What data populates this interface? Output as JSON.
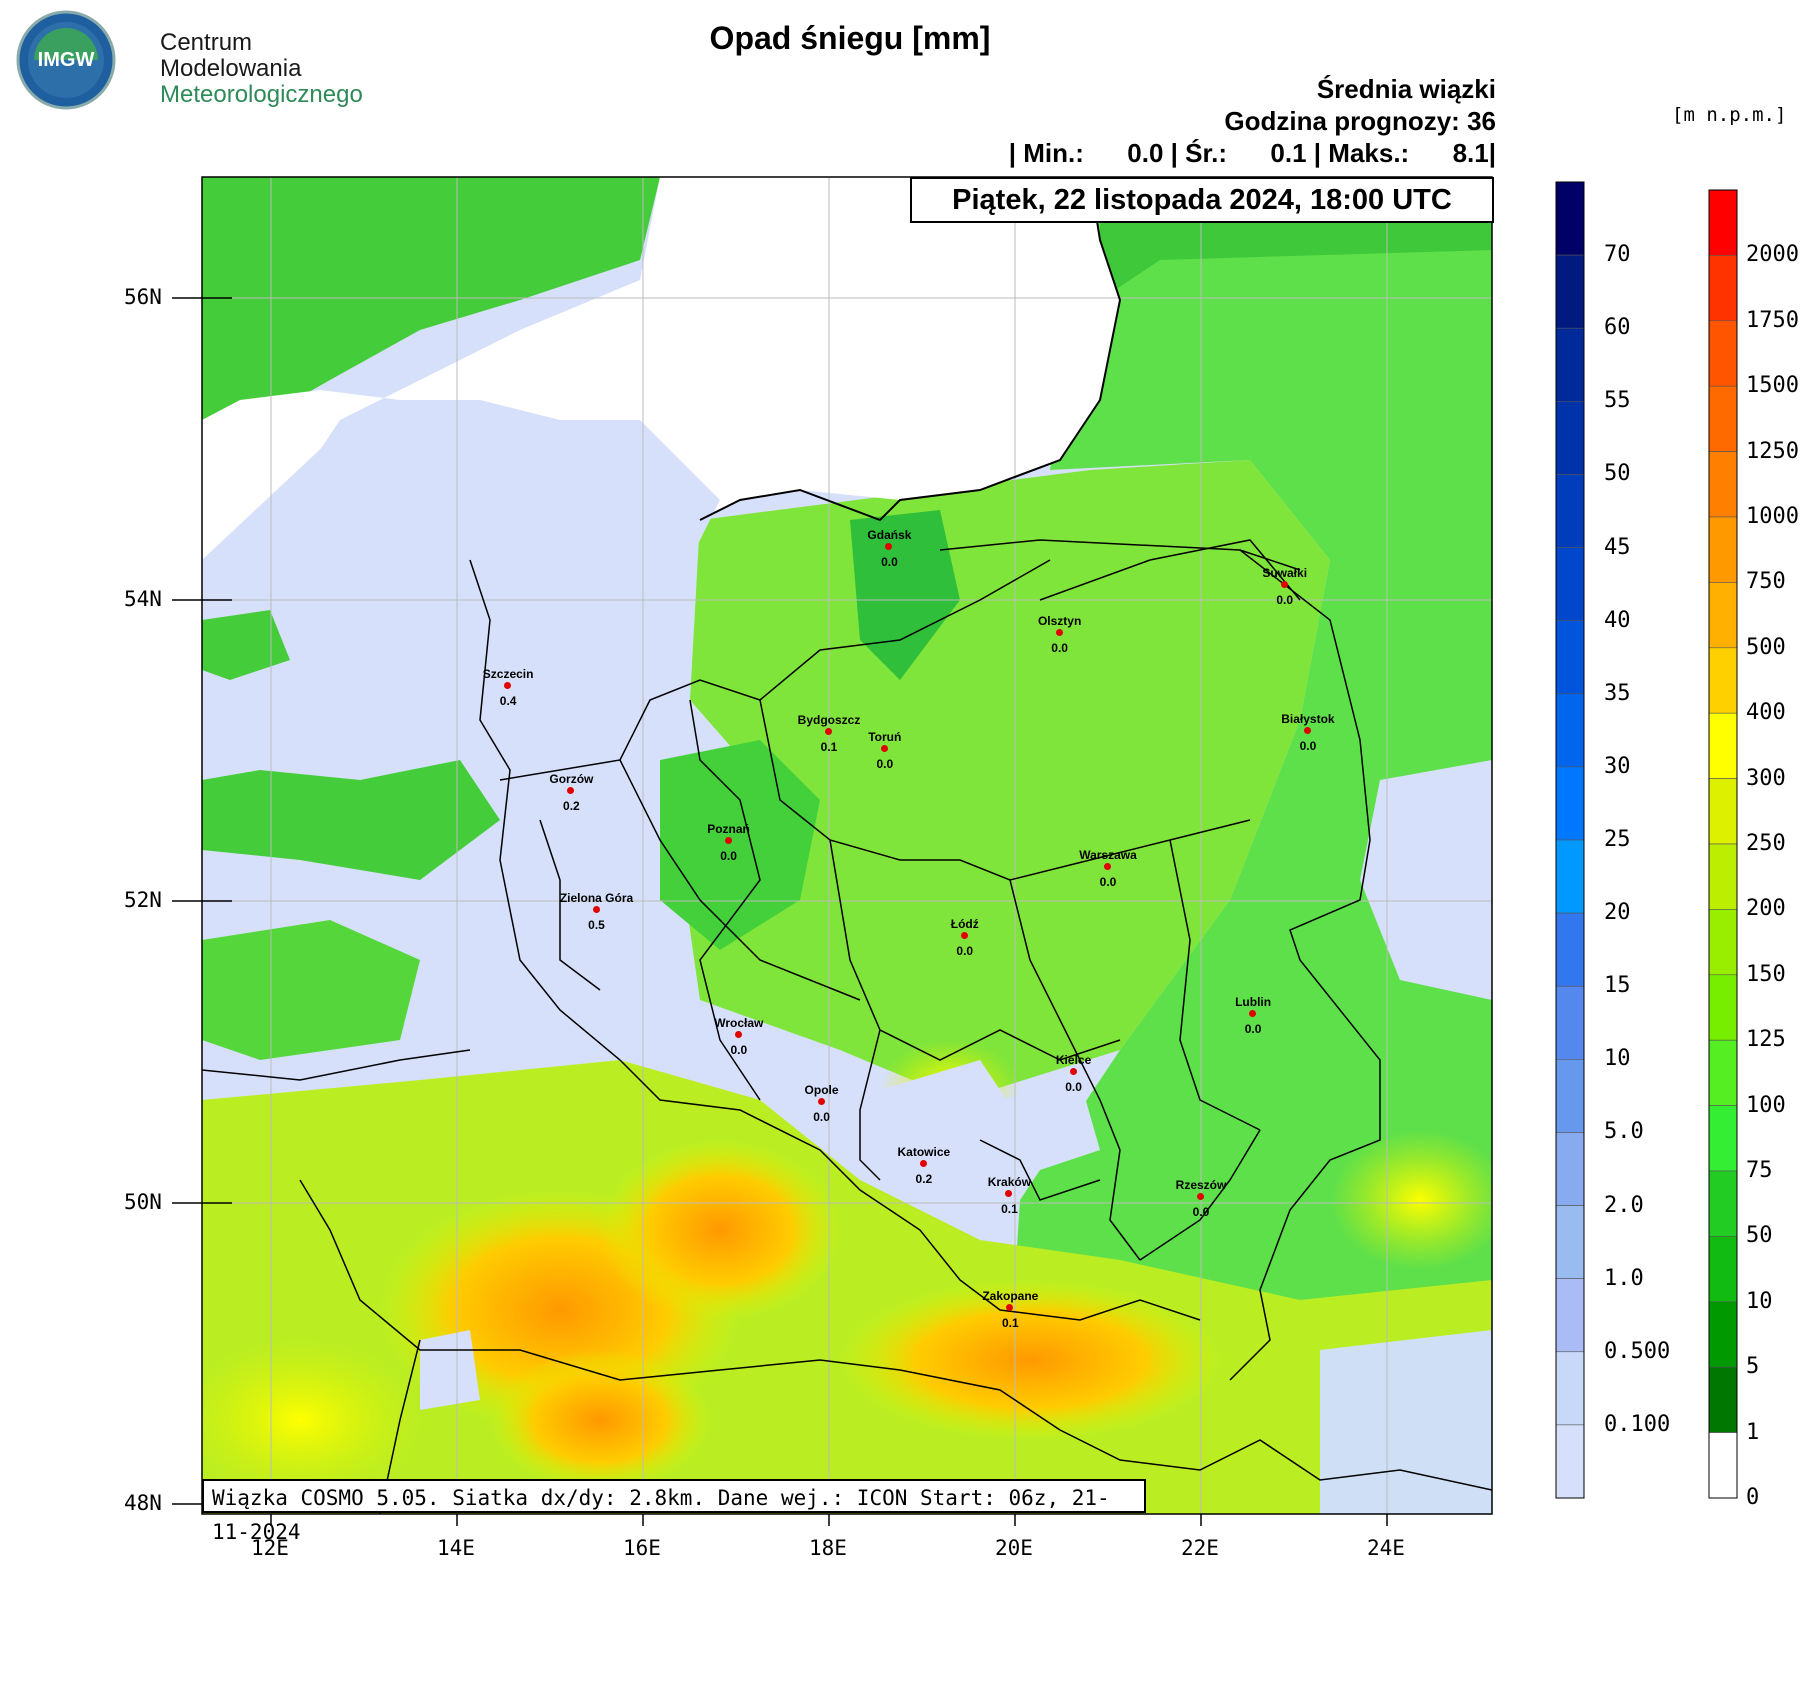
{
  "logo": {
    "badge": "IMGW",
    "line1": "Centrum",
    "line2": "Modelowania",
    "line3": "Meteorologicznego",
    "colors": {
      "blue": "#1f5f9f",
      "green": "#2e8b57"
    }
  },
  "title": "Opad śniegu [mm]",
  "subtitle": "Średnia wiązki",
  "forecast_hour": "Godzina prognozy: 36",
  "stats": {
    "min_label": "| Min.:",
    "min": "0.0",
    "avg_label": "| Śr.:",
    "avg": "0.1",
    "max_label": "| Maks.:",
    "max": "8.1",
    "end": "|"
  },
  "date": "Piątek, 22 listopada 2024, 18:00 UTC",
  "info": "Wiązka COSMO 5.05. Siatka dx/dy: 2.8km. Dane wej.: ICON Start: 06z, 21-11-2024",
  "units": "[m n.p.m.]",
  "chart_data": {
    "type": "map",
    "x_axis_labels": [
      "12E",
      "14E",
      "16E",
      "18E",
      "20E",
      "22E",
      "24E"
    ],
    "y_axis_labels": [
      "56N",
      "54N",
      "52N",
      "50N",
      "48N"
    ],
    "cities": [
      {
        "name": "Gdańsk",
        "value": "0.0",
        "lon": 18.65,
        "lat": 54.35
      },
      {
        "name": "Suwałki",
        "value": "0.0",
        "lon": 22.9,
        "lat": 54.1
      },
      {
        "name": "Olsztyn",
        "value": "0.0",
        "lon": 20.48,
        "lat": 53.78
      },
      {
        "name": "Szczecin",
        "value": "0.4",
        "lon": 14.55,
        "lat": 53.43
      },
      {
        "name": "Bydgoszcz",
        "value": "0.1",
        "lon": 18.0,
        "lat": 53.12
      },
      {
        "name": "Toruń",
        "value": "0.0",
        "lon": 18.6,
        "lat": 53.01
      },
      {
        "name": "Białystok",
        "value": "0.0",
        "lon": 23.15,
        "lat": 53.13
      },
      {
        "name": "Gorzów",
        "value": "0.2",
        "lon": 15.23,
        "lat": 52.73
      },
      {
        "name": "Poznań",
        "value": "0.0",
        "lon": 16.92,
        "lat": 52.4
      },
      {
        "name": "Warszawa",
        "value": "0.0",
        "lon": 21.0,
        "lat": 52.23
      },
      {
        "name": "Zielona Góra",
        "value": "0.5",
        "lon": 15.5,
        "lat": 51.94
      },
      {
        "name": "Łódź",
        "value": "0.0",
        "lon": 19.46,
        "lat": 51.77
      },
      {
        "name": "Lublin",
        "value": "0.0",
        "lon": 22.56,
        "lat": 51.25
      },
      {
        "name": "Wrocław",
        "value": "0.0",
        "lon": 17.03,
        "lat": 51.11
      },
      {
        "name": "Kielce",
        "value": "0.0",
        "lon": 20.63,
        "lat": 50.87
      },
      {
        "name": "Opole",
        "value": "0.0",
        "lon": 17.92,
        "lat": 50.67
      },
      {
        "name": "Katowice",
        "value": "0.2",
        "lon": 19.02,
        "lat": 50.26
      },
      {
        "name": "Kraków",
        "value": "0.1",
        "lon": 19.94,
        "lat": 50.06
      },
      {
        "name": "Rzeszów",
        "value": "0.0",
        "lon": 22.0,
        "lat": 50.04
      },
      {
        "name": "Zakopane",
        "value": "0.1",
        "lon": 19.95,
        "lat": 49.3
      }
    ],
    "snow_colorbar": {
      "labels": [
        "70",
        "60",
        "55",
        "50",
        "45",
        "40",
        "35",
        "30",
        "25",
        "20",
        "15",
        "10",
        "5.0",
        "2.0",
        "1.0",
        "0.500",
        "0.100"
      ],
      "colors": [
        "#000066",
        "#001a80",
        "#002a99",
        "#0033aa",
        "#003dbb",
        "#0047cc",
        "#0055dd",
        "#0066ee",
        "#0077ff",
        "#0099ff",
        "#3377ee",
        "#5588ee",
        "#6699ee",
        "#88aaee",
        "#99bbf0",
        "#aabbf5",
        "#c8d8f8",
        "#d6e0fa"
      ]
    },
    "terrain_colorbar": {
      "labels": [
        "2000",
        "1750",
        "1500",
        "1250",
        "1000",
        "750",
        "500",
        "400",
        "300",
        "250",
        "200",
        "150",
        "125",
        "100",
        "75",
        "50",
        "10",
        "5",
        "1",
        "0"
      ],
      "colors": [
        "#ff0000",
        "#ff3300",
        "#ff5500",
        "#ff6a00",
        "#ff8000",
        "#ff9900",
        "#ffb000",
        "#ffd000",
        "#ffff00",
        "#ddf000",
        "#bbee00",
        "#99ee00",
        "#77ee00",
        "#55ee22",
        "#33ee33",
        "#22cc22",
        "#11bb11",
        "#009900",
        "#007700",
        "#ffffff"
      ]
    },
    "field_colors": {
      "sea": "#ffffff",
      "snow_light": "#d6e0fa",
      "low": "#33cc33",
      "mid": "#88ee22",
      "high": "#ddf000",
      "mount": "#ff9900"
    }
  }
}
